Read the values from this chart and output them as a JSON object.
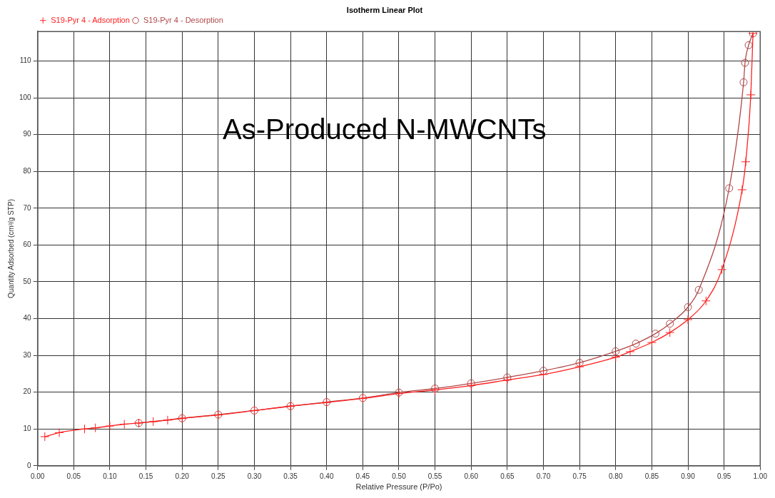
{
  "chart_data": {
    "type": "line",
    "title": "Isotherm Linear Plot",
    "xlabel": "Relative Pressure (P/Po)",
    "ylabel": "Quantity Adsorbed (cm³/g STP)",
    "annotations": [
      "As-Produced N-MWCNTs"
    ],
    "xlim": [
      0,
      1
    ],
    "ylim": [
      0,
      118
    ],
    "xticks": [
      {
        "value": 0,
        "label": "0.00"
      },
      {
        "value": 0.05,
        "label": "0.05"
      },
      {
        "value": 0.1,
        "label": "0.10"
      },
      {
        "value": 0.15,
        "label": "0.15"
      },
      {
        "value": 0.2,
        "label": "0.20"
      },
      {
        "value": 0.25,
        "label": "0.25"
      },
      {
        "value": 0.3,
        "label": "0.30"
      },
      {
        "value": 0.35,
        "label": "0.35"
      },
      {
        "value": 0.4,
        "label": "0.40"
      },
      {
        "value": 0.45,
        "label": "0.45"
      },
      {
        "value": 0.5,
        "label": "0.50"
      },
      {
        "value": 0.55,
        "label": "0.55"
      },
      {
        "value": 0.6,
        "label": "0.60"
      },
      {
        "value": 0.65,
        "label": "0.65"
      },
      {
        "value": 0.7,
        "label": "0.70"
      },
      {
        "value": 0.75,
        "label": "0.75"
      },
      {
        "value": 0.8,
        "label": "0.80"
      },
      {
        "value": 0.85,
        "label": "0.85"
      },
      {
        "value": 0.9,
        "label": "0.90"
      },
      {
        "value": 0.95,
        "label": "0.95"
      },
      {
        "value": 1,
        "label": "1.00"
      }
    ],
    "yticks": [
      0,
      10,
      20,
      30,
      40,
      50,
      60,
      70,
      80,
      90,
      100,
      110
    ],
    "grid": true,
    "legend": "top left",
    "line_style": "solid",
    "series": [
      {
        "name": "S19-Pyr 4 - Adsorption",
        "color": "#ff2020",
        "marker": "cross",
        "x": [
          0.01,
          0.03,
          0.065,
          0.08,
          0.1,
          0.12,
          0.14,
          0.16,
          0.18,
          0.2,
          0.25,
          0.3,
          0.35,
          0.4,
          0.45,
          0.5,
          0.55,
          0.6,
          0.65,
          0.7,
          0.75,
          0.8,
          0.82,
          0.85,
          0.875,
          0.9,
          0.925,
          0.947,
          0.975,
          0.98,
          0.987,
          0.99
        ],
        "values": [
          7.9,
          9.0,
          10.0,
          10.3,
          10.8,
          11.3,
          11.6,
          12.0,
          12.4,
          12.9,
          13.8,
          15.0,
          16.2,
          17.2,
          18.3,
          19.6,
          20.6,
          21.8,
          23.3,
          24.8,
          26.9,
          29.5,
          31.0,
          33.5,
          36.2,
          39.7,
          44.8,
          53.3,
          75.0,
          82.6,
          100.8,
          117.5
        ]
      },
      {
        "name": "S19-Pyr 4 - Desorption",
        "color": "#b04848",
        "marker": "circle",
        "x": [
          0.99,
          0.984,
          0.979,
          0.977,
          0.957,
          0.915,
          0.9,
          0.875,
          0.855,
          0.828,
          0.8,
          0.75,
          0.7,
          0.65,
          0.6,
          0.55,
          0.5,
          0.45,
          0.4,
          0.35,
          0.3,
          0.25,
          0.2,
          0.14
        ],
        "values": [
          117.5,
          114.3,
          109.5,
          104.2,
          75.4,
          47.8,
          43.1,
          38.6,
          35.9,
          33.2,
          31.1,
          28.0,
          25.8,
          24.0,
          22.4,
          21.0,
          19.9,
          18.4,
          17.3,
          16.2,
          15.0,
          13.9,
          12.9,
          11.6
        ]
      }
    ]
  }
}
